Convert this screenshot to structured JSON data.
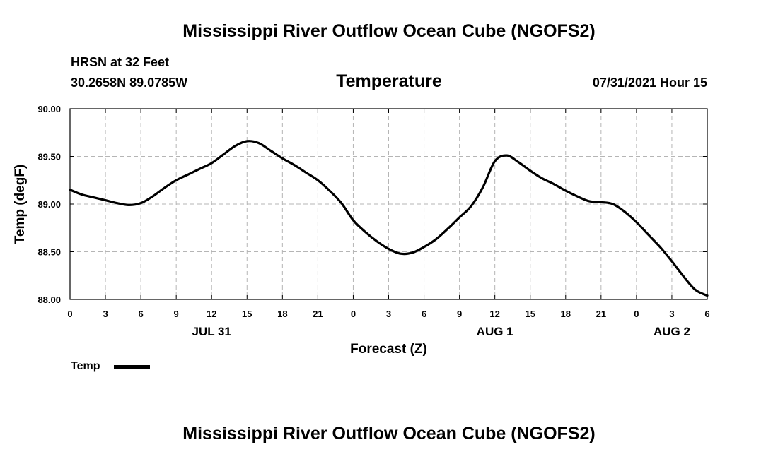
{
  "header": {
    "title": "Mississippi River Outflow Ocean Cube (NGOFS2)",
    "station": "HRSN at 32 Feet",
    "coords": "30.2658N  89.0785W",
    "variable": "Temperature",
    "datetime": "07/31/2021 Hour 15"
  },
  "footer": {
    "title": "Mississippi River Outflow Ocean Cube (NGOFS2)"
  },
  "legend": {
    "label": "Temp"
  },
  "chart_data": {
    "type": "line",
    "title": "Temperature",
    "xlabel": "Forecast (Z)",
    "ylabel": "Temp (degF)",
    "xlim": [
      0,
      54
    ],
    "ylim": [
      88.0,
      90.0
    ],
    "grid": true,
    "legend_position": "bottom-left",
    "x_ticks": [
      0,
      3,
      6,
      9,
      12,
      15,
      18,
      21,
      24,
      27,
      30,
      33,
      36,
      39,
      42,
      45,
      48,
      51,
      54
    ],
    "x_tick_labels": [
      "0",
      "3",
      "6",
      "9",
      "12",
      "15",
      "18",
      "21",
      "0",
      "3",
      "6",
      "9",
      "12",
      "15",
      "18",
      "21",
      "0",
      "3",
      "6"
    ],
    "date_labels": [
      {
        "x": 12,
        "label": "JUL 31"
      },
      {
        "x": 36,
        "label": "AUG 1"
      },
      {
        "x": 51,
        "label": "AUG 2"
      }
    ],
    "y_ticks": [
      88.0,
      88.5,
      89.0,
      89.5,
      90.0
    ],
    "y_tick_labels": [
      "88.00",
      "88.50",
      "89.00",
      "89.50",
      "90.00"
    ],
    "series": [
      {
        "name": "Temp",
        "color": "#000000",
        "x": [
          0,
          1,
          2,
          3,
          4,
          5,
          6,
          7,
          8,
          9,
          10,
          11,
          12,
          13,
          14,
          15,
          16,
          17,
          18,
          19,
          20,
          21,
          22,
          23,
          24,
          25,
          26,
          27,
          28,
          29,
          30,
          31,
          32,
          33,
          34,
          35,
          36,
          37,
          38,
          39,
          40,
          41,
          42,
          43,
          44,
          45,
          46,
          47,
          48,
          49,
          50,
          51,
          52,
          53,
          54
        ],
        "values": [
          89.15,
          89.1,
          89.07,
          89.04,
          89.01,
          88.99,
          89.01,
          89.08,
          89.17,
          89.25,
          89.31,
          89.37,
          89.43,
          89.52,
          89.61,
          89.66,
          89.64,
          89.56,
          89.48,
          89.41,
          89.33,
          89.25,
          89.14,
          89.01,
          88.83,
          88.71,
          88.61,
          88.53,
          88.48,
          88.49,
          88.55,
          88.63,
          88.74,
          88.86,
          88.98,
          89.18,
          89.45,
          89.51,
          89.44,
          89.35,
          89.27,
          89.21,
          89.14,
          89.08,
          89.03,
          89.02,
          89.0,
          88.92,
          88.81,
          88.68,
          88.55,
          88.4,
          88.24,
          88.1,
          88.04
        ]
      }
    ]
  }
}
